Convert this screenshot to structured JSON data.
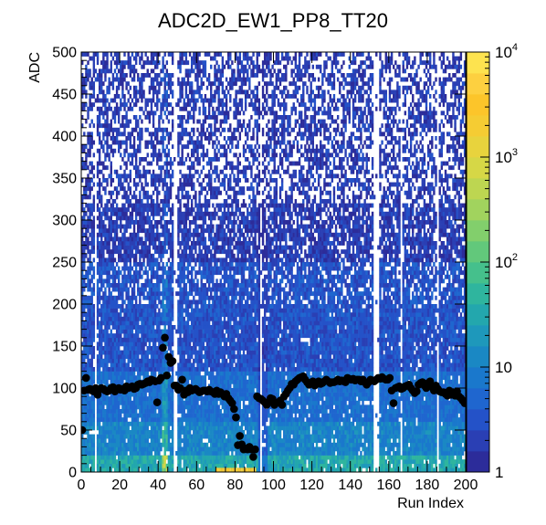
{
  "chart_data": {
    "type": "heatmap",
    "title": "ADC2D_EW1_PP8_TT20",
    "xlabel": "Run Index",
    "ylabel": "ADC",
    "xlim": [
      0,
      200
    ],
    "ylim": [
      0,
      500
    ],
    "xticks": [
      "0",
      "20",
      "40",
      "60",
      "80",
      "100",
      "120",
      "140",
      "160",
      "180",
      "200"
    ],
    "yticks": [
      "0",
      "50",
      "100",
      "150",
      "200",
      "250",
      "300",
      "350",
      "400",
      "450",
      "500"
    ],
    "colorbar": {
      "scale": "log",
      "range": [
        1,
        10000
      ],
      "ticks": [
        {
          "base": "1",
          "exp": ""
        },
        {
          "base": "10",
          "exp": ""
        },
        {
          "base": "10",
          "exp": "2"
        },
        {
          "base": "10",
          "exp": "3"
        },
        {
          "base": "10",
          "exp": "4"
        }
      ],
      "colors": [
        "#2c2c9a",
        "#2a3fb4",
        "#2452c8",
        "#1f66cf",
        "#1a78cc",
        "#1a88c4",
        "#1e98bb",
        "#23a7ad",
        "#2fb59e",
        "#45c08c",
        "#62c87b",
        "#82cf6c",
        "#a1d35e",
        "#bdd651",
        "#d6d746",
        "#e8d33d",
        "#f5cc33",
        "#fcc52a",
        "#fdd040",
        "#fde34f"
      ]
    },
    "markers": {
      "color": "#000000",
      "x": [
        0,
        1,
        2,
        3,
        4,
        5,
        6,
        7,
        8,
        9,
        10,
        11,
        12,
        13,
        14,
        15,
        16,
        17,
        18,
        19,
        20,
        21,
        22,
        23,
        24,
        25,
        26,
        27,
        28,
        29,
        30,
        31,
        32,
        33,
        34,
        35,
        36,
        37,
        38,
        39,
        40,
        41,
        42,
        43,
        44,
        45,
        46,
        47,
        48,
        49,
        50,
        51,
        52,
        53,
        54,
        55,
        56,
        57,
        58,
        59,
        60,
        61,
        62,
        63,
        64,
        65,
        66,
        67,
        68,
        69,
        70,
        71,
        72,
        73,
        74,
        75,
        76,
        77,
        78,
        79,
        80,
        81,
        82,
        83,
        84,
        85,
        86,
        87,
        88,
        89,
        90,
        91,
        92,
        93,
        94,
        95,
        96,
        97,
        98,
        99,
        100,
        101,
        102,
        103,
        104,
        105,
        106,
        107,
        108,
        109,
        110,
        111,
        112,
        113,
        114,
        115,
        116,
        117,
        118,
        119,
        120,
        121,
        122,
        123,
        124,
        125,
        126,
        127,
        128,
        129,
        130,
        131,
        132,
        133,
        134,
        135,
        136,
        137,
        138,
        139,
        140,
        141,
        142,
        143,
        144,
        145,
        146,
        147,
        148,
        149,
        150,
        151,
        152,
        153,
        154,
        155,
        156,
        157,
        158,
        159,
        160,
        161,
        162,
        163,
        164,
        165,
        166,
        167,
        168,
        169,
        170,
        171,
        172,
        173,
        174,
        175,
        176,
        177,
        178,
        179,
        180,
        181,
        182,
        183,
        184,
        185,
        186,
        187,
        188,
        189,
        190,
        191,
        192,
        193,
        194,
        195,
        196,
        197,
        198,
        199
      ],
      "y": [
        50,
        97,
        112,
        98,
        99,
        97,
        96,
        100,
        92,
        98,
        100,
        99,
        97,
        96,
        97,
        100,
        101,
        96,
        99,
        100,
        98,
        99,
        97,
        102,
        100,
        101,
        102,
        99,
        100,
        104,
        105,
        104,
        105,
        106,
        108,
        107,
        110,
        109,
        108,
        83,
        109,
        112,
        148,
        160,
        115,
        137,
        130,
        132,
        103,
        103,
        98,
        100,
        110,
        92,
        97,
        95,
        100,
        97,
        98,
        99,
        97,
        95,
        96,
        97,
        97,
        96,
        98,
        96,
        95,
        93,
        97,
        93,
        95,
        93,
        90,
        93,
        88,
        85,
        82,
        75,
        65,
        32,
        43,
        33,
        27,
        28,
        27,
        30,
        27,
        18,
        27,
        90,
        88,
        87,
        85,
        83,
        80,
        83,
        88,
        87,
        80,
        82,
        83,
        85,
        80,
        90,
        93,
        97,
        100,
        105,
        104,
        108,
        110,
        112,
        113,
        114,
        110,
        107,
        104,
        106,
        108,
        103,
        105,
        108,
        105,
        106,
        108,
        110,
        108,
        106,
        107,
        107,
        108,
        110,
        108,
        109,
        108,
        107,
        112,
        111,
        110,
        111,
        109,
        110,
        110,
        108,
        110,
        107,
        104,
        107,
        110,
        109,
        108,
        110,
        112,
        111,
        113,
        111,
        110,
        110,
        112,
        97,
        82,
        100,
        101,
        102,
        99,
        100,
        102,
        103,
        104,
        100,
        97,
        94,
        96,
        104,
        106,
        107,
        103,
        100,
        106,
        108,
        101,
        97,
        103,
        99,
        96,
        95,
        95,
        93,
        91,
        97,
        92,
        95,
        91,
        96,
        90,
        88,
        85,
        82
      ]
    }
  }
}
